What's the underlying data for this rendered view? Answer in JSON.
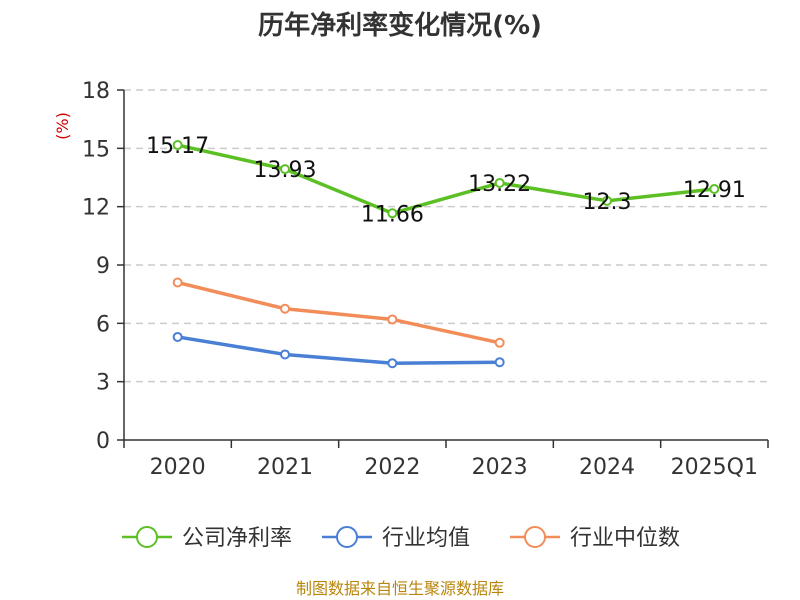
{
  "chart_data": {
    "type": "line",
    "title": "历年净利率变化情况(%)",
    "ylabel": "(%)",
    "categories": [
      "2020",
      "2021",
      "2022",
      "2023",
      "2024",
      "2025Q1"
    ],
    "ylim": [
      0,
      18
    ],
    "yticks": [
      "0",
      "3",
      "6",
      "9",
      "12",
      "15",
      "18"
    ],
    "grid": true,
    "legend": "bottom",
    "series": [
      {
        "name": "公司净利率",
        "color": "#5cc024",
        "values": [
          15.17,
          13.93,
          11.66,
          13.22,
          12.3,
          12.91
        ],
        "labels": [
          "15.17",
          "13.93",
          "11.66",
          "13.22",
          "12.3",
          "12.91"
        ]
      },
      {
        "name": "行业均值",
        "color": "#4a7fd6",
        "values": [
          5.3,
          4.4,
          3.95,
          4.0,
          null,
          null
        ]
      },
      {
        "name": "行业中位数",
        "color": "#f28d5a",
        "values": [
          8.1,
          6.75,
          6.2,
          5.0,
          null,
          null
        ]
      }
    ],
    "source": "制图数据来自恒生聚源数据库"
  }
}
